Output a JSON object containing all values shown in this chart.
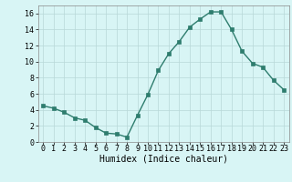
{
  "x": [
    0,
    1,
    2,
    3,
    4,
    5,
    6,
    7,
    8,
    9,
    10,
    11,
    12,
    13,
    14,
    15,
    16,
    17,
    18,
    19,
    20,
    21,
    22,
    23
  ],
  "y": [
    4.5,
    4.2,
    3.7,
    3.0,
    2.7,
    1.8,
    1.1,
    1.0,
    0.6,
    3.3,
    5.9,
    8.9,
    11.0,
    12.5,
    14.3,
    15.3,
    16.2,
    16.2,
    14.0,
    11.3,
    9.8,
    9.3,
    7.7,
    6.5
  ],
  "line_color": "#2e7d6e",
  "marker": "s",
  "marker_size": 2.5,
  "bg_color": "#d8f5f5",
  "grid_color": "#b8d8d8",
  "xlabel": "Humidex (Indice chaleur)",
  "xlim": [
    -0.5,
    23.5
  ],
  "ylim": [
    0,
    17
  ],
  "yticks": [
    0,
    2,
    4,
    6,
    8,
    10,
    12,
    14,
    16
  ],
  "xticks": [
    0,
    1,
    2,
    3,
    4,
    5,
    6,
    7,
    8,
    9,
    10,
    11,
    12,
    13,
    14,
    15,
    16,
    17,
    18,
    19,
    20,
    21,
    22,
    23
  ],
  "xlabel_fontsize": 7,
  "tick_fontsize": 6
}
